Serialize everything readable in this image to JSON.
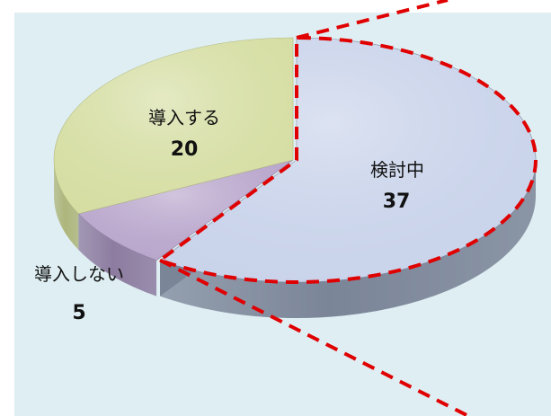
{
  "chart_data": {
    "type": "pie",
    "style": "3d-exploded",
    "slices": [
      {
        "label": "検討中",
        "value": 37,
        "color": "#c9d3ea",
        "side_color": "#7b8598",
        "exploded": true
      },
      {
        "label": "導入しない",
        "value": 5,
        "color": "#b9a6cc",
        "side_color": "#8d7ca0",
        "exploded": false
      },
      {
        "label": "導入する",
        "value": 20,
        "color": "#d6dea4",
        "side_color": "#aeb67c",
        "exploded": false
      }
    ],
    "highlight": {
      "slice": "検討中",
      "outline": "dashed",
      "color": "#e00000"
    },
    "background_color": "#dfeef2"
  }
}
